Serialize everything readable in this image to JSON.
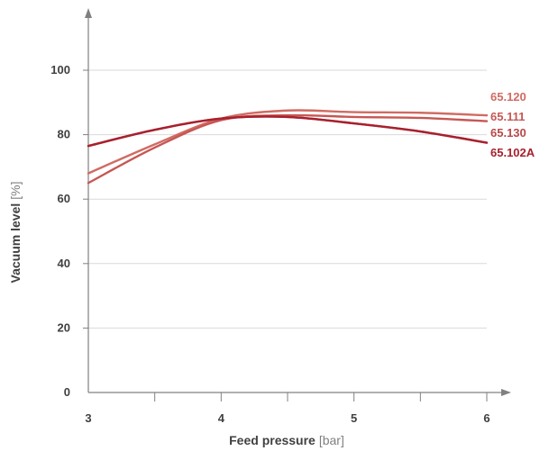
{
  "chart_data": {
    "type": "line",
    "xlabel": "Feed pressure",
    "xlabel_unit": "[bar]",
    "ylabel": "Vacuum level",
    "ylabel_unit": "[%]",
    "xlim": [
      3,
      6
    ],
    "ylim": [
      0,
      100
    ],
    "x_ticks": [
      "3",
      "4",
      "5",
      "6"
    ],
    "x_minor_ticks": [
      3.5,
      4.5,
      5.5
    ],
    "y_ticks": [
      "0",
      "20",
      "40",
      "60",
      "80",
      "100"
    ],
    "grid": "horizontal",
    "series": [
      {
        "name": "65.120",
        "color": "#d06b63",
        "x": [
          3,
          3.5,
          4,
          4.5,
          5,
          5.5,
          6
        ],
        "y": [
          68,
          77,
          85,
          87.5,
          87,
          86.8,
          86
        ]
      },
      {
        "name": "65.111",
        "color": "#c65754",
        "x": [
          3,
          3.5,
          4,
          4.5,
          5,
          5.5,
          6
        ],
        "y": [
          65,
          76,
          84.5,
          86,
          85.5,
          85.2,
          84.2
        ]
      },
      {
        "name": "65.130",
        "color": "#b84848",
        "x": [
          3,
          3.5,
          4,
          4.5,
          5,
          5.5,
          6
        ],
        "y": [
          76.5,
          81.5,
          85,
          85.5,
          83.5,
          81,
          77.5
        ]
      },
      {
        "name": "65.102A",
        "color": "#a8202e",
        "x": [
          3,
          3.5,
          4,
          4.5,
          5,
          5.5,
          6
        ],
        "y": [
          76.5,
          81.5,
          85,
          85.5,
          83.5,
          81,
          77.5
        ]
      }
    ],
    "legend_placement": "right-of-lines"
  }
}
